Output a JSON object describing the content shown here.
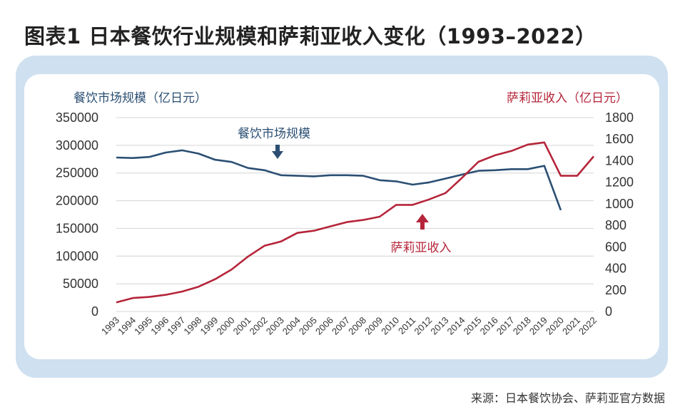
{
  "title": "图表1   日本餐饮行业规模和萨莉亚收入变化（1993–2022）",
  "source": "来源：日本餐饮协会、萨莉亚官方数据",
  "colors": {
    "market": "#2b4f73",
    "revenue": "#b5253a",
    "frame": "#cfe0f0",
    "grid": "#d4d4d4"
  },
  "chart_data": {
    "type": "line",
    "x": [
      "1993",
      "1994",
      "1995",
      "1996",
      "1997",
      "1998",
      "1999",
      "2000",
      "2001",
      "2002",
      "2003",
      "2004",
      "2005",
      "2006",
      "2007",
      "2008",
      "2009",
      "2010",
      "2011",
      "2012",
      "2013",
      "2014",
      "2015",
      "2016",
      "2017",
      "2018",
      "2019",
      "2020",
      "2021",
      "2022"
    ],
    "grid": true,
    "left_axis": {
      "label": "餐饮市场规模（亿日元）",
      "range": [
        0,
        350000
      ],
      "ticks": [
        "0",
        "50000",
        "100000",
        "150000",
        "200000",
        "250000",
        "300000",
        "350000"
      ]
    },
    "right_axis": {
      "label": "萨莉亚收入（亿日元）",
      "range": [
        0,
        1800
      ],
      "ticks": [
        "0",
        "200",
        "400",
        "600",
        "800",
        "1000",
        "1200",
        "1400",
        "1600",
        "1800"
      ]
    },
    "series": [
      {
        "name": "餐饮市场规模",
        "axis": "left",
        "values": [
          278000,
          277000,
          279000,
          287000,
          291000,
          285000,
          274000,
          270000,
          259000,
          255000,
          246000,
          245000,
          244000,
          246000,
          246000,
          245000,
          237000,
          235000,
          229000,
          233000,
          240000,
          247000,
          254000,
          255000,
          257000,
          257000,
          263000,
          183000,
          null,
          null
        ]
      },
      {
        "name": "萨莉亚收入",
        "axis": "right",
        "values": [
          85,
          125,
          135,
          155,
          185,
          230,
          300,
          390,
          510,
          610,
          650,
          730,
          750,
          790,
          830,
          850,
          880,
          990,
          990,
          1040,
          1100,
          1240,
          1390,
          1450,
          1490,
          1550,
          1570,
          1260,
          1260,
          1440
        ]
      }
    ],
    "annotations": [
      {
        "text": "餐饮市场规模",
        "arrow": "down",
        "series": "餐饮市场规模"
      },
      {
        "text": "萨莉亚收入",
        "arrow": "up",
        "series": "萨莉亚收入"
      }
    ]
  }
}
